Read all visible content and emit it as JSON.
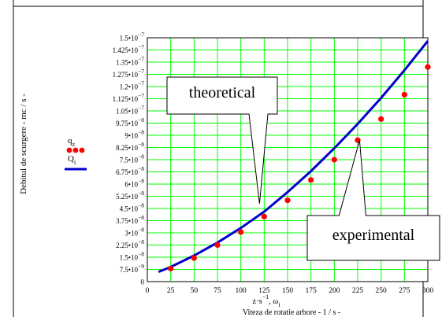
{
  "chart_data": {
    "type": "line",
    "ylabel": "Debitul de scurgere - mc / s -",
    "xlabel_line1": "z·s-1, ω i",
    "xlabel_line2": "Viteza de rotatie arbore - 1 / s -",
    "xlim": [
      0,
      300
    ],
    "ylim": [
      0,
      1.5e-07
    ],
    "x_ticks": [
      0,
      25,
      50,
      75,
      100,
      125,
      150,
      175,
      200,
      225,
      250,
      275,
      300
    ],
    "x_tick_labels": [
      "0",
      "25",
      "50",
      "75",
      "100",
      "125",
      "150",
      "175",
      "200",
      "225",
      "250",
      "275",
      "300"
    ],
    "y_ticks": [
      0,
      7.5e-09,
      1.5e-08,
      2.25e-08,
      3e-08,
      3.75e-08,
      4.5e-08,
      5.25e-08,
      6e-08,
      6.75e-08,
      7.5e-08,
      8.25e-08,
      9e-08,
      9.75e-08,
      1.05e-07,
      1.125e-07,
      1.2e-07,
      1.275e-07,
      1.35e-07,
      1.425e-07,
      1.5e-07
    ],
    "y_tick_labels": [
      {
        "m": "0",
        "e": ""
      },
      {
        "m": "7.5•10",
        "e": "−9"
      },
      {
        "m": "1.5•10",
        "e": "−8"
      },
      {
        "m": "2.25•10",
        "e": "−8"
      },
      {
        "m": "3•10",
        "e": "−8"
      },
      {
        "m": "3.75•10",
        "e": "−8"
      },
      {
        "m": "4.5•10",
        "e": "−8"
      },
      {
        "m": "5.25•10",
        "e": "−8"
      },
      {
        "m": "6•10",
        "e": "−8"
      },
      {
        "m": "6.75•10",
        "e": "−8"
      },
      {
        "m": "7.5•10",
        "e": "−8"
      },
      {
        "m": "8.25•10",
        "e": "−8"
      },
      {
        "m": "9•10",
        "e": "−8"
      },
      {
        "m": "9.75•10",
        "e": "−8"
      },
      {
        "m": "1.05•10",
        "e": "−7"
      },
      {
        "m": "1.125•10",
        "e": "−7"
      },
      {
        "m": "1.2•10",
        "e": "−7"
      },
      {
        "m": "1.275•10",
        "e": "−7"
      },
      {
        "m": "1.35•10",
        "e": "−7"
      },
      {
        "m": "1.425•10",
        "e": "−7"
      },
      {
        "m": "1.5•10",
        "e": "−7"
      }
    ],
    "grid": true,
    "background": "#ffffff",
    "plot_background": "#ffffff",
    "grid_color": "#00ff00",
    "series": [
      {
        "name": "qz",
        "style": "markers",
        "color": "#ff0000",
        "x": [
          25,
          50,
          75,
          100,
          125,
          150,
          175,
          200,
          225,
          250,
          275,
          300
        ],
        "y": [
          8e-09,
          1.45e-08,
          2.25e-08,
          3.05e-08,
          4e-08,
          5e-08,
          6.25e-08,
          7.5e-08,
          8.7e-08,
          1e-07,
          1.15e-07,
          1.32e-07
        ]
      },
      {
        "name": "Qi",
        "style": "line",
        "color": "#0000cc",
        "x": [
          12,
          25,
          50,
          75,
          100,
          125,
          150,
          175,
          200,
          225,
          250,
          275,
          300
        ],
        "y": [
          6e-09,
          9e-09,
          1.6e-08,
          2.4e-08,
          3.3e-08,
          4.3e-08,
          5.5e-08,
          6.8e-08,
          8.2e-08,
          9.7e-08,
          1.13e-07,
          1.3e-07,
          1.48e-07
        ]
      }
    ],
    "legend": {
      "placement": "left",
      "items": [
        {
          "label": "q",
          "sub": "z",
          "style": "markers",
          "color": "#ff0000"
        },
        {
          "label": "Q",
          "sub": "i",
          "style": "line",
          "color": "#0000cc"
        }
      ]
    },
    "annotations": [
      {
        "text": "theoretical",
        "target_x": 120,
        "target_y": 4.8e-08
      },
      {
        "text": "experimental",
        "target_x": 227,
        "target_y": 8.7e-08
      }
    ]
  }
}
